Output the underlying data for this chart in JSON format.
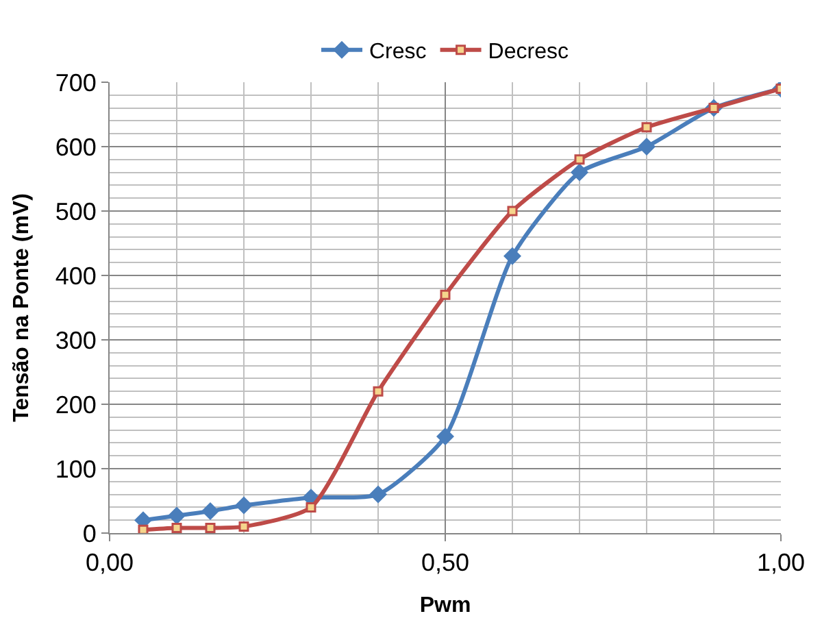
{
  "chart_data": {
    "type": "line",
    "xlabel": "Pwm",
    "ylabel": "Tensão na Ponte (mV)",
    "x": [
      0.05,
      0.1,
      0.15,
      0.2,
      0.3,
      0.4,
      0.5,
      0.6,
      0.7,
      0.8,
      0.9,
      1.0
    ],
    "series": [
      {
        "name": "Cresc",
        "color": "#4a7ebb",
        "marker": "diamond",
        "values": [
          20,
          27,
          34,
          43,
          55,
          60,
          150,
          430,
          560,
          600,
          660,
          690
        ]
      },
      {
        "name": "Decresc",
        "color": "#be4b48",
        "marker": "square",
        "values": [
          5,
          8,
          8,
          10,
          40,
          220,
          370,
          500,
          580,
          630,
          660,
          690
        ]
      }
    ],
    "xlim": [
      0,
      1
    ],
    "xticks": [
      {
        "value": 0,
        "label": "0,00"
      },
      {
        "value": 0.5,
        "label": "0,50"
      },
      {
        "value": 1,
        "label": "1,00"
      }
    ],
    "ylim": [
      0,
      700
    ],
    "yticks": [
      0,
      100,
      200,
      300,
      400,
      500,
      600,
      700
    ],
    "grid": true,
    "legend": "top",
    "line_style": "solid"
  }
}
